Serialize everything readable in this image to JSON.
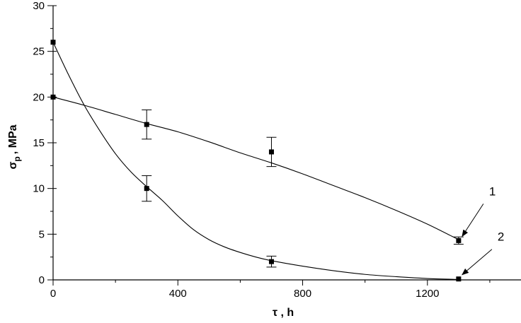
{
  "chart_data": {
    "type": "scatter",
    "xlabel": "τ , h",
    "ylabel": "σp , MPa",
    "ylabel_main": "σ",
    "ylabel_sub": "p",
    "ylabel_rest": ", MPa",
    "xlim": [
      0,
      1500
    ],
    "ylim": [
      0,
      30
    ],
    "x_ticks": [
      0,
      400,
      800,
      1200
    ],
    "y_ticks": [
      0,
      5,
      10,
      15,
      20,
      25,
      30
    ],
    "grid": false,
    "series": [
      {
        "name": "1",
        "x": [
          0,
          300,
          700,
          1300
        ],
        "y": [
          20,
          17,
          14,
          4.3
        ],
        "error": [
          null,
          1.6,
          1.6,
          0.4
        ],
        "fit": [
          [
            0,
            20
          ],
          [
            100,
            19.1
          ],
          [
            200,
            18.1
          ],
          [
            300,
            17.1
          ],
          [
            400,
            16.2
          ],
          [
            500,
            15.1
          ],
          [
            600,
            13.9
          ],
          [
            700,
            12.8
          ],
          [
            800,
            11.6
          ],
          [
            900,
            10.3
          ],
          [
            1000,
            9.0
          ],
          [
            1100,
            7.6
          ],
          [
            1200,
            6.1
          ],
          [
            1300,
            4.4
          ]
        ]
      },
      {
        "name": "2",
        "x": [
          0,
          300,
          700,
          1300
        ],
        "y": [
          26,
          10,
          2,
          0.1
        ],
        "error": [
          null,
          1.4,
          0.6,
          null
        ],
        "fit": [
          [
            0,
            26
          ],
          [
            50,
            22.4
          ],
          [
            100,
            19.1
          ],
          [
            150,
            16.3
          ],
          [
            200,
            13.8
          ],
          [
            250,
            11.8
          ],
          [
            300,
            10.2
          ],
          [
            350,
            8.7
          ],
          [
            400,
            7.0
          ],
          [
            450,
            5.5
          ],
          [
            500,
            4.4
          ],
          [
            550,
            3.6
          ],
          [
            600,
            3.0
          ],
          [
            650,
            2.5
          ],
          [
            700,
            2.1
          ],
          [
            800,
            1.5
          ],
          [
            900,
            1.0
          ],
          [
            1000,
            0.6
          ],
          [
            1100,
            0.35
          ],
          [
            1200,
            0.15
          ],
          [
            1300,
            0.05
          ]
        ]
      }
    ],
    "annotations": [
      {
        "text": "1",
        "series": "1"
      },
      {
        "text": "2",
        "series": "2"
      }
    ]
  }
}
